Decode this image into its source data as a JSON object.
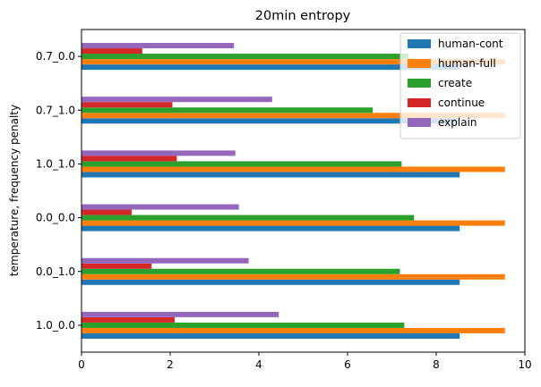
{
  "chart_data": {
    "type": "bar",
    "orientation": "horizontal",
    "title": "20min entropy",
    "xlabel": "",
    "ylabel": "temperature, frequency penalty",
    "categories": [
      "1.0_0.0",
      "0.0_1.0",
      "0.0_0.0",
      "1.0_1.0",
      "0.7_1.0",
      "0.7_0.0"
    ],
    "xlim": [
      0,
      10
    ],
    "xticks": [
      0,
      2,
      4,
      6,
      8,
      10
    ],
    "grid": false,
    "legend_position": "top-right",
    "series": [
      {
        "name": "human-cont",
        "color": "#1f77b4",
        "values": [
          8.53,
          8.53,
          8.53,
          8.53,
          8.53,
          8.53
        ]
      },
      {
        "name": "human-full",
        "color": "#ff7f0e",
        "values": [
          9.55,
          9.55,
          9.55,
          9.55,
          9.55,
          9.55
        ]
      },
      {
        "name": "create",
        "color": "#2ca02c",
        "values": [
          7.28,
          7.18,
          7.5,
          7.22,
          6.57,
          7.38
        ]
      },
      {
        "name": "continue",
        "color": "#d62728",
        "values": [
          2.1,
          1.58,
          1.13,
          2.15,
          2.05,
          1.37
        ]
      },
      {
        "name": "explain",
        "color": "#9467bd",
        "values": [
          4.45,
          3.77,
          3.55,
          3.47,
          4.3,
          3.44
        ]
      }
    ]
  }
}
